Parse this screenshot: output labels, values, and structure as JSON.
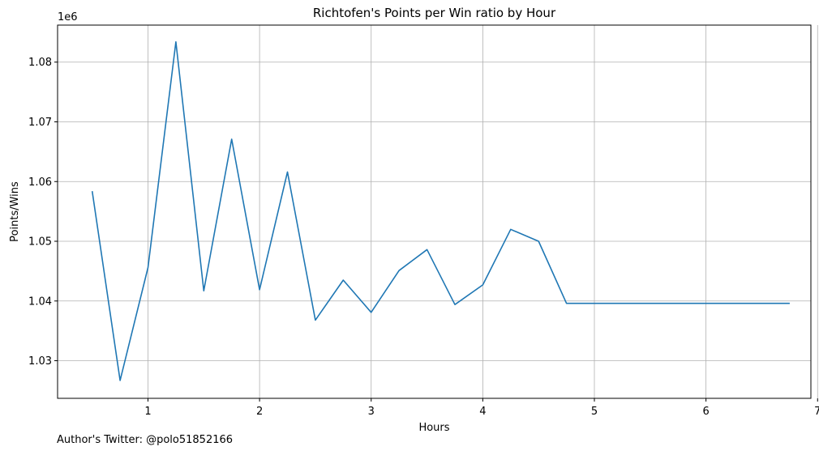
{
  "chart_data": {
    "type": "line",
    "title": "Richtofen's Points per Win ratio by Hour",
    "xlabel": "Hours",
    "ylabel": "Points/Wins",
    "y_offset_label": "1e6",
    "xlim": [
      0.19,
      6.94
    ],
    "ylim": [
      1.0237,
      1.0862
    ],
    "x_ticks": [
      1,
      2,
      3,
      4,
      5,
      6,
      7
    ],
    "y_ticks": [
      1.03,
      1.04,
      1.05,
      1.06,
      1.07,
      1.08
    ],
    "y_tick_labels": [
      "1.03",
      "1.04",
      "1.05",
      "1.06",
      "1.07",
      "1.08"
    ],
    "grid": true,
    "series": [
      {
        "color": "#1f77b4",
        "x": [
          0.5,
          0.75,
          1.0,
          1.25,
          1.5,
          1.75,
          2.0,
          2.25,
          2.5,
          2.75,
          3.0,
          3.25,
          3.5,
          3.75,
          4.0,
          4.25,
          4.5,
          4.75,
          5.0,
          5.25,
          5.5,
          5.75,
          6.0,
          6.25,
          6.5,
          6.75
        ],
        "y": [
          1.0584,
          1.0267,
          1.0456,
          1.0834,
          1.0417,
          1.0671,
          1.0419,
          1.0616,
          1.0368,
          1.0435,
          1.0381,
          1.0451,
          1.0486,
          1.0394,
          1.0427,
          1.052,
          1.05,
          1.0396,
          1.0396,
          1.0396,
          1.0396,
          1.0396,
          1.0396,
          1.0396,
          1.0396,
          1.0396
        ]
      }
    ]
  },
  "footnote": "Author's Twitter: @polo51852166"
}
